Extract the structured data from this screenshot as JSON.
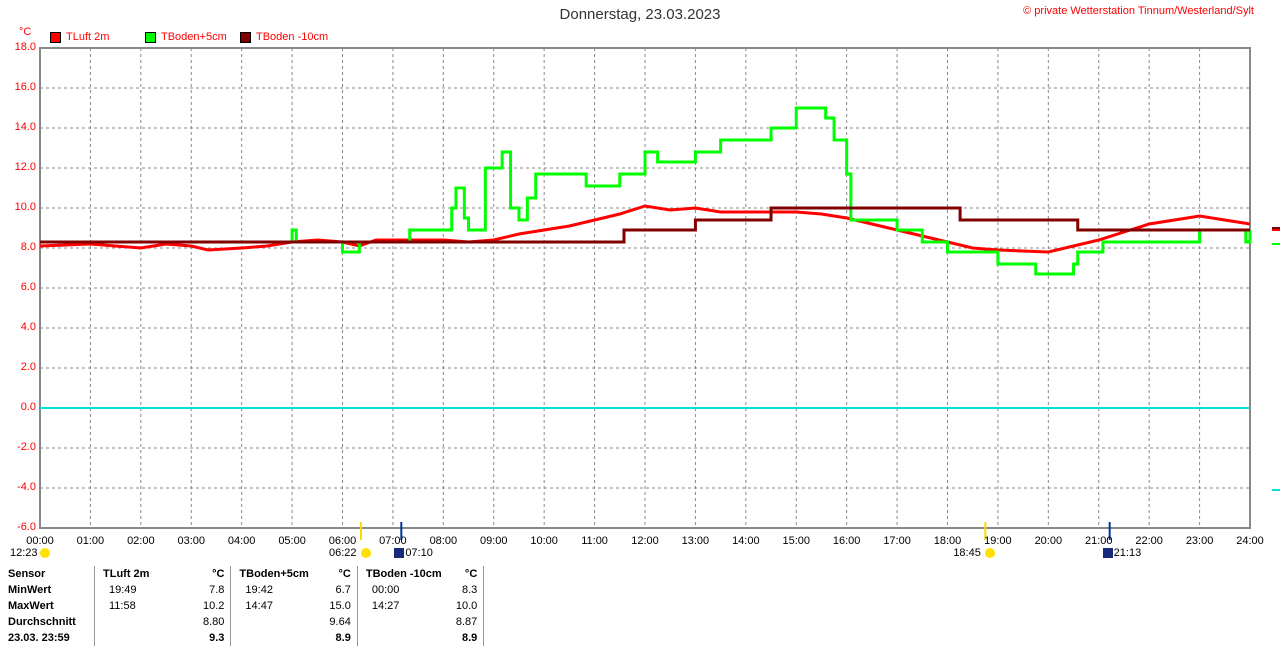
{
  "header": {
    "title": "Donnerstag, 23.03.2023",
    "copyright": "© private Wetterstation Tinnum/Westerland/Sylt",
    "unit": "°C"
  },
  "chart_data": {
    "type": "line",
    "title": "Donnerstag, 23.03.2023",
    "ylabel": "°C",
    "ylim": [
      -6,
      18
    ],
    "xlim": [
      "00:00",
      "24:00"
    ],
    "grid": true,
    "legend": "top-left",
    "yticks": [
      "18.0",
      "16.0",
      "14.0",
      "12.0",
      "10.0",
      "8.0",
      "6.0",
      "4.0",
      "2.0",
      "0.0",
      "-2.0",
      "-4.0",
      "-6.0"
    ],
    "xticks": [
      "00:00",
      "01:00",
      "02:00",
      "03:00",
      "04:00",
      "05:00",
      "06:00",
      "07:00",
      "08:00",
      "09:00",
      "10:00",
      "11:00",
      "12:00",
      "13:00",
      "14:00",
      "15:00",
      "16:00",
      "17:00",
      "18:00",
      "19:00",
      "20:00",
      "21:00",
      "22:00",
      "23:00",
      "24:00"
    ],
    "zero_line_color": "#00e0e0",
    "series": [
      {
        "name": "TLuft 2m",
        "color": "#ff0000",
        "step": false,
        "points": [
          [
            "00:00",
            8.1
          ],
          [
            "01:00",
            8.2
          ],
          [
            "02:00",
            8.0
          ],
          [
            "02:30",
            8.2
          ],
          [
            "03:00",
            8.1
          ],
          [
            "03:20",
            7.9
          ],
          [
            "04:00",
            8.0
          ],
          [
            "04:30",
            8.1
          ],
          [
            "05:00",
            8.3
          ],
          [
            "05:30",
            8.4
          ],
          [
            "06:00",
            8.3
          ],
          [
            "06:20",
            8.1
          ],
          [
            "06:40",
            8.4
          ],
          [
            "07:00",
            8.4
          ],
          [
            "08:00",
            8.4
          ],
          [
            "08:30",
            8.3
          ],
          [
            "09:00",
            8.4
          ],
          [
            "09:30",
            8.7
          ],
          [
            "10:00",
            8.9
          ],
          [
            "10:30",
            9.1
          ],
          [
            "11:00",
            9.4
          ],
          [
            "11:30",
            9.7
          ],
          [
            "12:00",
            10.1
          ],
          [
            "12:30",
            9.9
          ],
          [
            "13:00",
            10.0
          ],
          [
            "13:30",
            9.8
          ],
          [
            "14:00",
            9.8
          ],
          [
            "15:00",
            9.8
          ],
          [
            "15:30",
            9.7
          ],
          [
            "16:00",
            9.5
          ],
          [
            "16:30",
            9.2
          ],
          [
            "17:00",
            8.9
          ],
          [
            "17:30",
            8.6
          ],
          [
            "18:00",
            8.3
          ],
          [
            "18:30",
            8.0
          ],
          [
            "19:00",
            7.9
          ],
          [
            "20:00",
            7.8
          ],
          [
            "20:30",
            8.1
          ],
          [
            "21:00",
            8.4
          ],
          [
            "21:30",
            8.8
          ],
          [
            "22:00",
            9.2
          ],
          [
            "22:30",
            9.4
          ],
          [
            "23:00",
            9.6
          ],
          [
            "23:30",
            9.4
          ],
          [
            "24:00",
            9.2
          ]
        ]
      },
      {
        "name": "TBoden+5cm",
        "color": "#00ff00",
        "step": true,
        "points": [
          [
            "00:00",
            8.3
          ],
          [
            "05:00",
            8.9
          ],
          [
            "05:05",
            8.3
          ],
          [
            "06:00",
            7.8
          ],
          [
            "06:20",
            8.3
          ],
          [
            "07:20",
            8.9
          ],
          [
            "08:00",
            8.9
          ],
          [
            "08:10",
            10.0
          ],
          [
            "08:15",
            11.0
          ],
          [
            "08:25",
            9.5
          ],
          [
            "08:30",
            8.9
          ],
          [
            "08:50",
            12.0
          ],
          [
            "09:10",
            12.8
          ],
          [
            "09:20",
            10.0
          ],
          [
            "09:30",
            9.4
          ],
          [
            "09:40",
            10.5
          ],
          [
            "09:50",
            11.7
          ],
          [
            "10:50",
            11.1
          ],
          [
            "11:30",
            11.7
          ],
          [
            "12:00",
            12.8
          ],
          [
            "12:15",
            12.3
          ],
          [
            "13:00",
            12.8
          ],
          [
            "13:30",
            13.4
          ],
          [
            "14:30",
            14.0
          ],
          [
            "15:00",
            15.0
          ],
          [
            "15:35",
            14.5
          ],
          [
            "15:45",
            13.4
          ],
          [
            "16:00",
            11.7
          ],
          [
            "16:05",
            9.4
          ],
          [
            "17:00",
            8.9
          ],
          [
            "17:30",
            8.3
          ],
          [
            "18:00",
            7.8
          ],
          [
            "19:00",
            7.2
          ],
          [
            "19:45",
            6.7
          ],
          [
            "20:30",
            7.2
          ],
          [
            "20:35",
            7.8
          ],
          [
            "21:00",
            7.8
          ],
          [
            "21:05",
            8.3
          ],
          [
            "22:00",
            8.3
          ],
          [
            "23:00",
            8.9
          ],
          [
            "23:55",
            8.3
          ],
          [
            "24:00",
            8.9
          ]
        ]
      },
      {
        "name": "TBoden -10cm",
        "color": "#800000",
        "step": true,
        "points": [
          [
            "00:00",
            8.3
          ],
          [
            "11:35",
            8.9
          ],
          [
            "13:00",
            9.4
          ],
          [
            "14:30",
            10.0
          ],
          [
            "18:15",
            9.4
          ],
          [
            "20:35",
            8.9
          ],
          [
            "24:00",
            8.9
          ]
        ]
      }
    ]
  },
  "astro": [
    {
      "time": "12:23",
      "icon": "moon-icon"
    },
    {
      "time": "06:22",
      "icon": "sunrise-icon"
    },
    {
      "time": "07:10",
      "icon": "twilight-icon"
    },
    {
      "time": "18:45",
      "icon": "sunset-icon"
    },
    {
      "time": "21:13",
      "icon": "twilight-icon"
    }
  ],
  "table": {
    "headers": [
      "Sensor",
      "TLuft 2m",
      "°C",
      "TBoden+5cm",
      "°C",
      "TBoden -10cm",
      "°C"
    ],
    "rows": [
      [
        "MinWert",
        "19:49",
        "7.8",
        "19:42",
        "6.7",
        "00:00",
        "8.3"
      ],
      [
        "MaxWert",
        "11:58",
        "10.2",
        "14:47",
        "15.0",
        "14:27",
        "10.0"
      ],
      [
        "Durchschnitt",
        "",
        "8.80",
        "",
        "9.64",
        "",
        "8.87"
      ],
      [
        "23.03. 23:59",
        "",
        "9.3",
        "",
        "8.9",
        "",
        "8.9"
      ]
    ]
  }
}
